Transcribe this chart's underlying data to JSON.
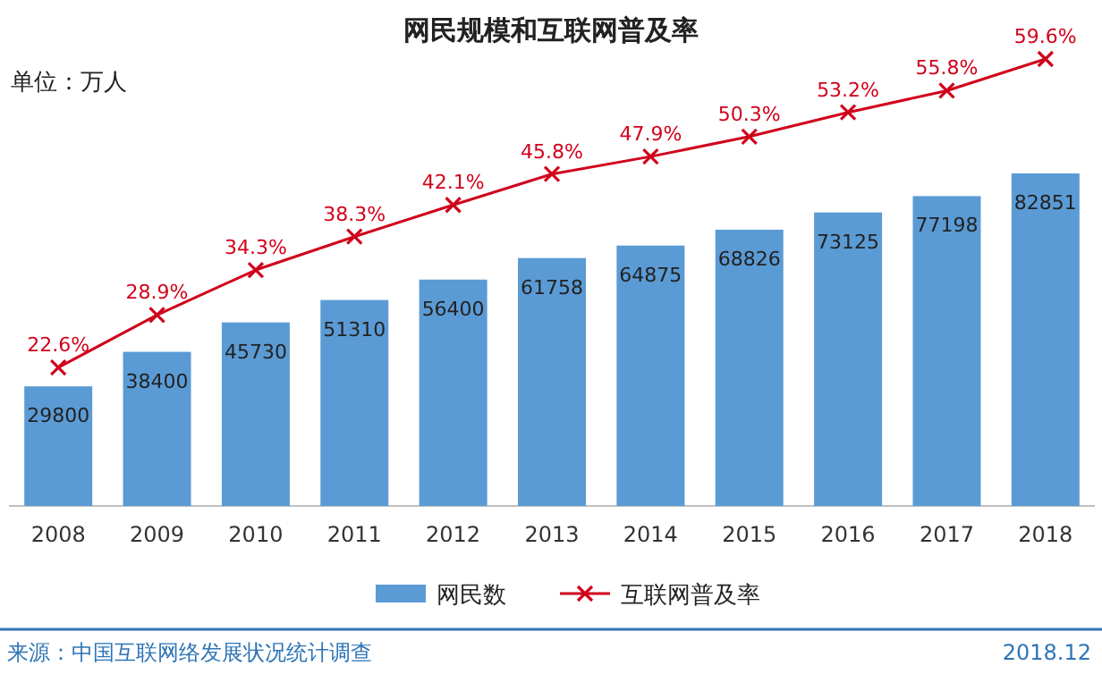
{
  "chart_data": {
    "type": "bar",
    "title": "网民规模和互联网普及率",
    "subtitle": "单位：万人",
    "categories": [
      "2008",
      "2009",
      "2010",
      "2011",
      "2012",
      "2013",
      "2014",
      "2015",
      "2016",
      "2017",
      "2018"
    ],
    "series": [
      {
        "name": "网民数",
        "color": "#5b9bd5",
        "values": [
          29800,
          38400,
          45730,
          51310,
          56400,
          61758,
          64875,
          68826,
          73125,
          77198,
          82851
        ]
      },
      {
        "name": "互联网普及率",
        "type": "line",
        "axis": "y2",
        "color": "#d0021b",
        "marker": "cross",
        "value_labels": [
          "22.6%",
          "28.9%",
          "34.3%",
          "38.3%",
          "42.1%",
          "45.8%",
          "47.9%",
          "50.3%",
          "53.2%",
          "55.8%",
          "59.6%"
        ],
        "values": [
          22.6,
          28.9,
          34.3,
          38.3,
          42.1,
          45.8,
          47.9,
          50.3,
          53.2,
          55.8,
          59.6
        ]
      }
    ],
    "tick_labels": "x",
    "data_labels": true,
    "legend": "bottom",
    "grid": false,
    "annotations": [
      "来源：中国互联网络发展状况统计调查",
      "2018.12"
    ]
  }
}
